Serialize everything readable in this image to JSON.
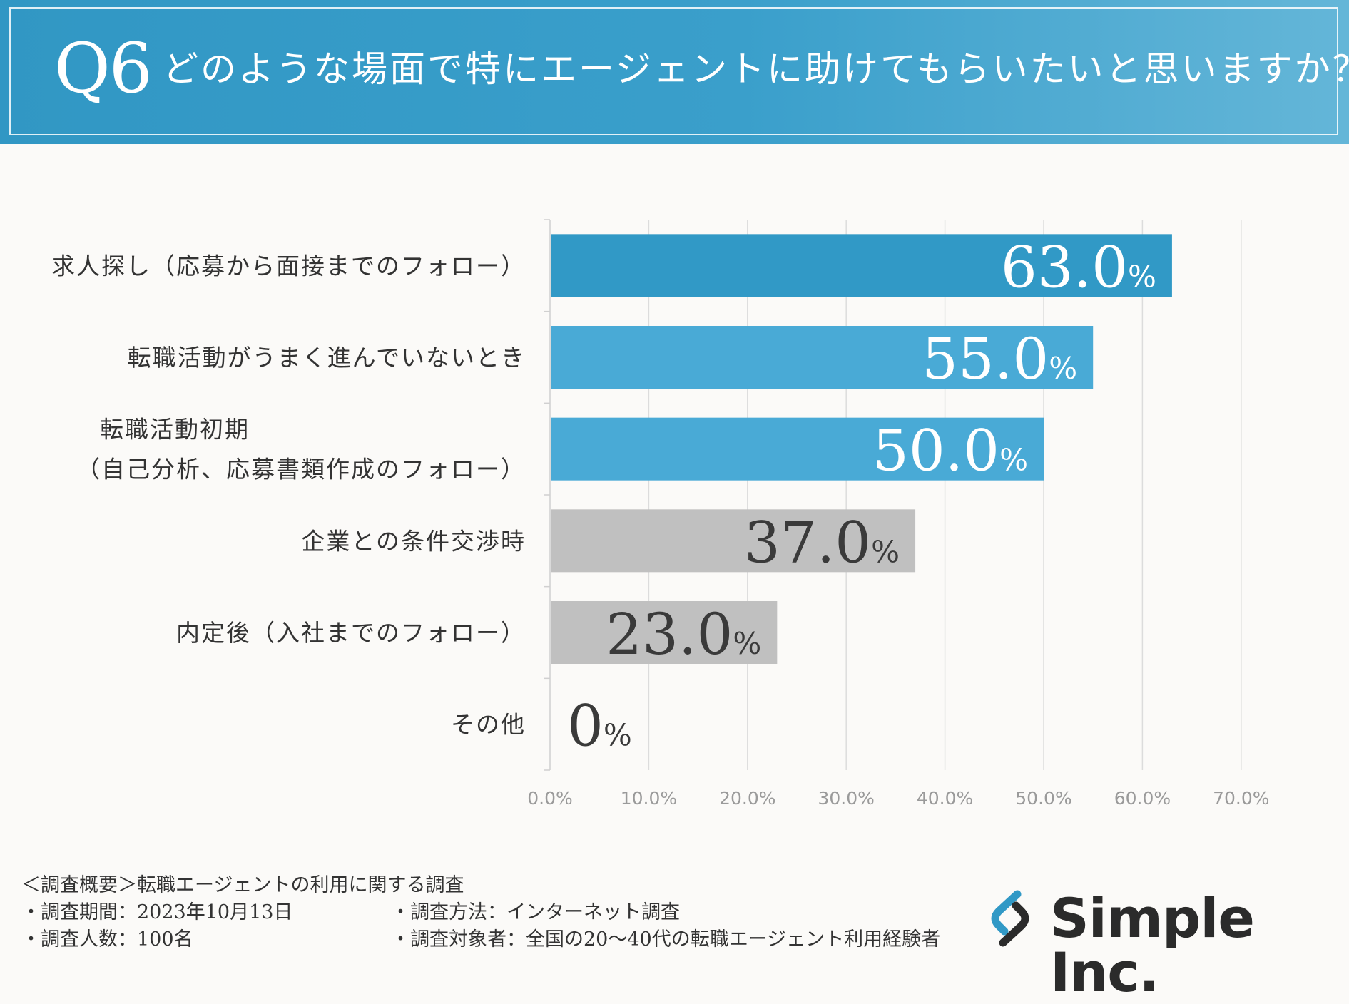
{
  "header": {
    "q_number": "Q6",
    "question": "どのような場面で特にエージェントに助けてもらいたいと思いますか？"
  },
  "chart_data": {
    "type": "bar",
    "orientation": "horizontal",
    "categories": [
      [
        "求人探し（応募から面接までのフォロー）"
      ],
      [
        "転職活動がうまく進んでいないとき"
      ],
      [
        "転職活動初期",
        "（自己分析、応募書類作成のフォロー）"
      ],
      [
        "企業との条件交渉時"
      ],
      [
        "内定後（入社までのフォロー）"
      ],
      [
        "その他"
      ]
    ],
    "values": [
      63.0,
      55.0,
      50.0,
      37.0,
      23.0,
      0
    ],
    "value_labels": [
      "63.0",
      "55.0",
      "50.0",
      "37.0",
      "23.0",
      "0"
    ],
    "value_unit": "%",
    "bar_colors": [
      "#3199c6",
      "#49aad6",
      "#49aad6",
      "#c0c0c0",
      "#c0c0c0",
      "#c0c0c0"
    ],
    "xlim": [
      0,
      70
    ],
    "xticks": [
      "0.0%",
      "10.0%",
      "20.0%",
      "30.0%",
      "40.0%",
      "50.0%",
      "60.0%",
      "70.0%"
    ],
    "grid": true
  },
  "footer": {
    "title": "＜調査概要＞転職エージェントの利用に関する調査",
    "period": "・調査期間：2023年10月13日",
    "count": "・調査人数：100名",
    "method": "・調査方法：インターネット調査",
    "target": "・調査対象者：全国の20～40代の転職エージェント利用経験者"
  },
  "logo": {
    "text": "Simple Inc.",
    "colors": [
      "#2b2b2b",
      "#3199c6"
    ]
  }
}
